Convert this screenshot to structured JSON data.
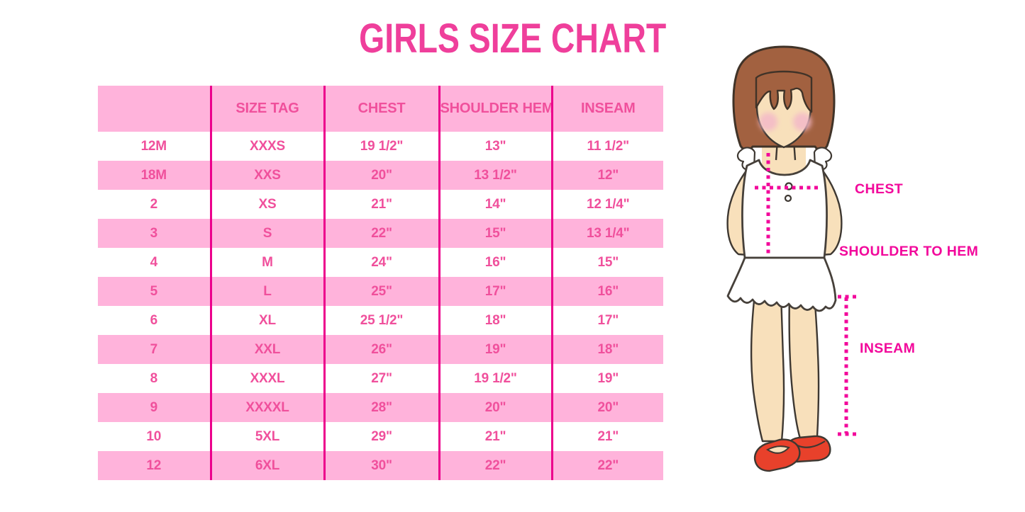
{
  "title": "GIRLS SIZE CHART",
  "chart_data": {
    "type": "table",
    "title": "GIRLS SIZE CHART",
    "columns": [
      "",
      "SIZE TAG",
      "CHEST",
      "SHOULDER HEM",
      "INSEAM"
    ],
    "rows": [
      [
        "12M",
        "XXXS",
        "19 1/2\"",
        "13\"",
        "11 1/2\""
      ],
      [
        "18M",
        "XXS",
        "20\"",
        "13 1/2\"",
        "12\""
      ],
      [
        "2",
        "XS",
        "21\"",
        "14\"",
        "12 1/4\""
      ],
      [
        "3",
        "S",
        "22\"",
        "15\"",
        "13 1/4\""
      ],
      [
        "4",
        "M",
        "24\"",
        "16\"",
        "15\""
      ],
      [
        "5",
        "L",
        "25\"",
        "17\"",
        "16\""
      ],
      [
        "6",
        "XL",
        "25 1/2\"",
        "18\"",
        "17\""
      ],
      [
        "7",
        "XXL",
        "26\"",
        "19\"",
        "18\""
      ],
      [
        "8",
        "XXXL",
        "27\"",
        "19 1/2\"",
        "19\""
      ],
      [
        "9",
        "XXXXL",
        "28\"",
        "20\"",
        "20\""
      ],
      [
        "10",
        "5XL",
        "29\"",
        "21\"",
        "21\""
      ],
      [
        "12",
        "6XL",
        "30\"",
        "22\"",
        "22\""
      ]
    ],
    "layout_hints": {
      "header_background": "pink band",
      "row_striping": "white / pink alternating starting white",
      "column_rules": "magenta vertical lines between columns only"
    }
  },
  "figure": {
    "labels": {
      "chest": "CHEST",
      "shoulder_to_hem": "SHOULDER TO HEM",
      "inseam": "INSEAM"
    }
  },
  "colors": {
    "title_pink": "#EF3F9B",
    "table_band_pink": "#FFB3DB",
    "table_rule_magenta": "#EC008C",
    "table_text_pink": "#F0509C",
    "measure_label_magenta": "#F2089B",
    "hair_brown": "#A26140",
    "skin": "#F8E0BB",
    "blush": "#F3B9C8",
    "shoe_red": "#E8412B",
    "outline_dark": "#3E3832"
  }
}
